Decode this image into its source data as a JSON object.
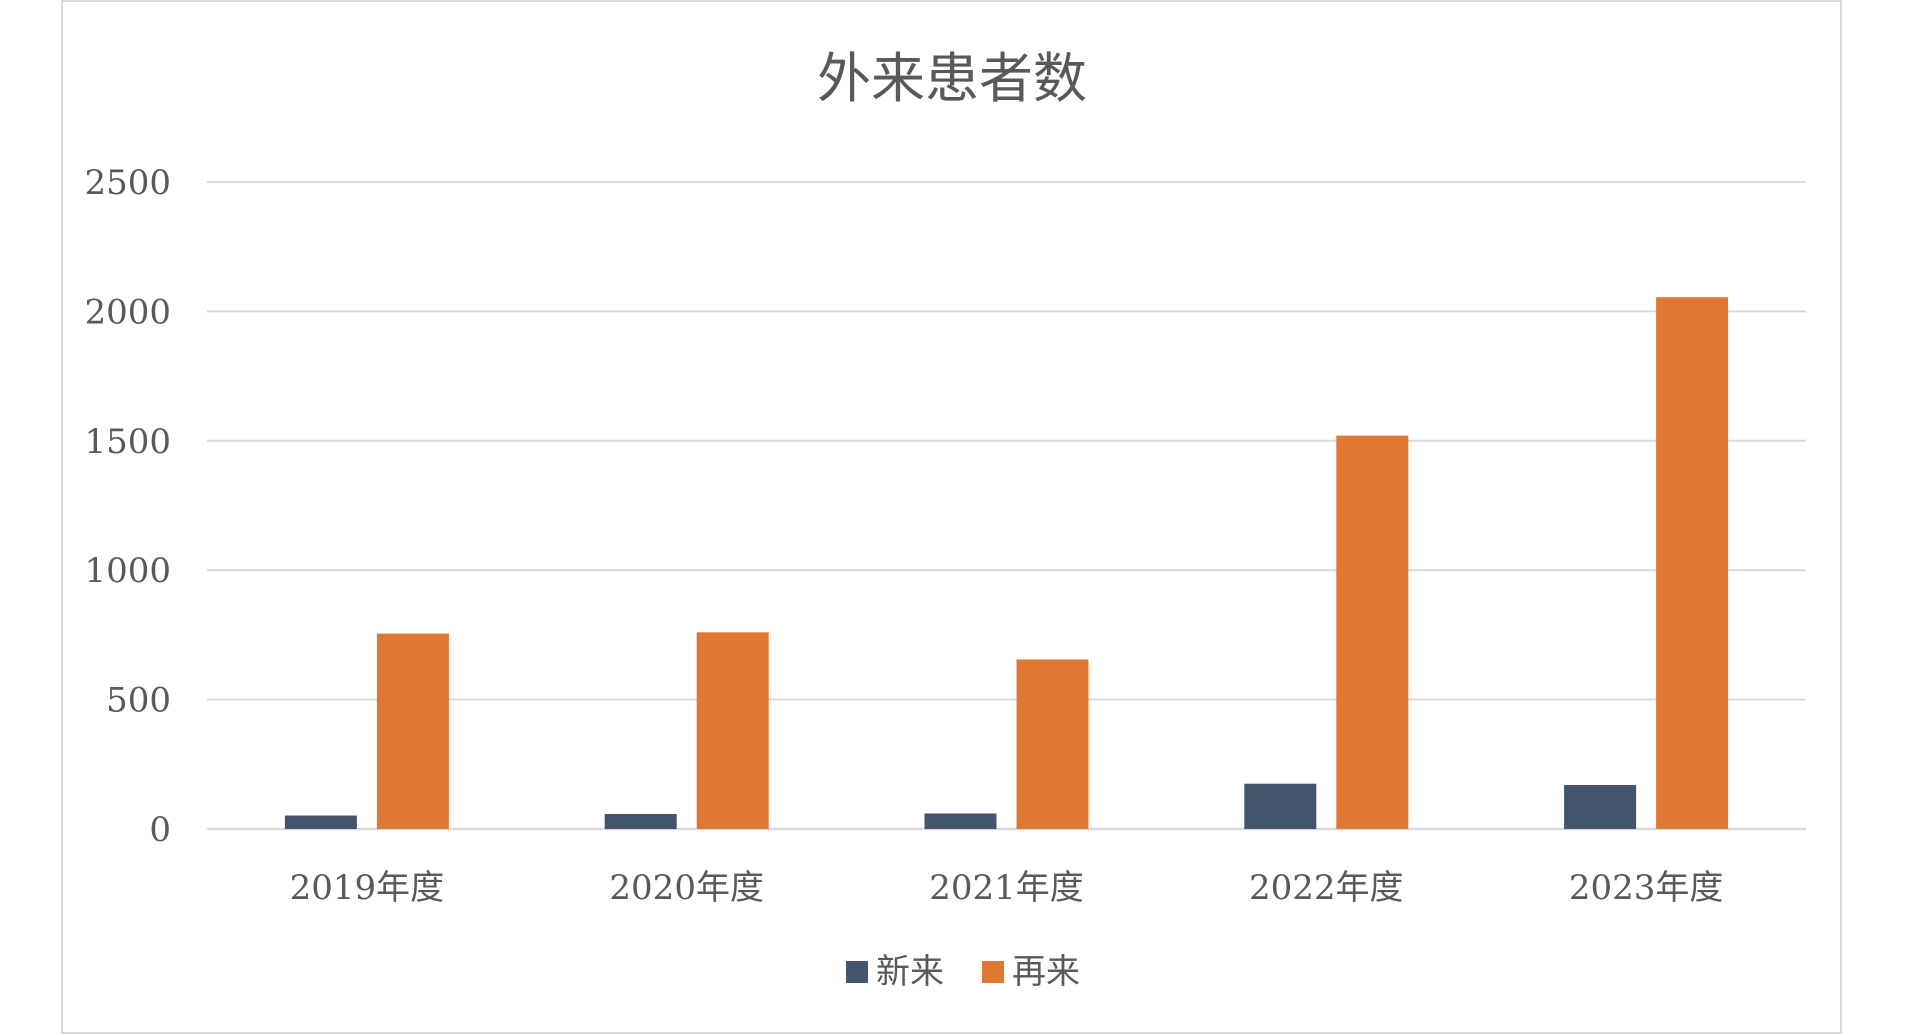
{
  "chart_data": {
    "type": "bar",
    "title": "外来患者数",
    "categories": [
      "2019年度",
      "2020年度",
      "2021年度",
      "2022年度",
      "2023年度"
    ],
    "series": [
      {
        "name": "新来",
        "values": [
          52,
          58,
          60,
          175,
          170
        ],
        "color": "#44546a"
      },
      {
        "name": "再来",
        "values": [
          755,
          760,
          655,
          1520,
          2055
        ],
        "color": "#e07834"
      }
    ],
    "ylim": [
      0,
      2500
    ],
    "yticks": [
      0,
      500,
      1000,
      1500,
      2000,
      2500
    ],
    "grid": true,
    "legend": "bottom",
    "xlabel": "",
    "ylabel": ""
  }
}
